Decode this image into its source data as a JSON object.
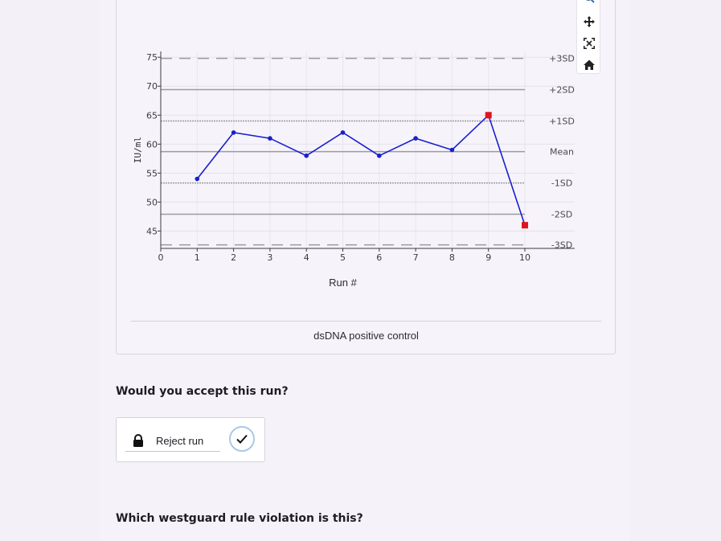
{
  "modebar": {
    "icons": [
      "zoom-icon",
      "pan-icon",
      "autoscale-icon",
      "reset-home-icon"
    ]
  },
  "chart_data": {
    "type": "line",
    "title": "",
    "xlabel": "Run #",
    "ylabel": "IU/ml",
    "xlim": [
      0,
      10
    ],
    "ylim": [
      42,
      76
    ],
    "x_ticks": [
      "0",
      "1",
      "2",
      "3",
      "4",
      "5",
      "6",
      "7",
      "8",
      "9",
      "10"
    ],
    "y_ticks": [
      "45",
      "50",
      "55",
      "60",
      "65",
      "70",
      "75"
    ],
    "series": [
      {
        "x": [
          1,
          2,
          3,
          4,
          5,
          6,
          7,
          8,
          9,
          10
        ],
        "y": [
          54,
          62,
          61,
          58,
          62,
          58,
          61,
          59,
          65,
          46
        ],
        "color": "#1a1fcf",
        "violations": [
          9,
          10
        ],
        "violation_color": "#e0141e"
      }
    ],
    "reference_lines": [
      {
        "label": "+3SD",
        "value": 74.8,
        "style": "dashed"
      },
      {
        "label": "+2SD",
        "value": 69.4,
        "style": "solid"
      },
      {
        "label": "+1SD",
        "value": 64.0,
        "style": "dotted"
      },
      {
        "label": "Mean",
        "value": 58.7,
        "style": "solid"
      },
      {
        "label": "-1SD",
        "value": 53.3,
        "style": "dotted"
      },
      {
        "label": "-2SD",
        "value": 47.9,
        "style": "solid"
      },
      {
        "label": "-3SD",
        "value": 42.6,
        "style": "dashed"
      }
    ],
    "grid": true
  },
  "chart_caption": "dsDNA positive control",
  "question_accept": "Would you accept this run?",
  "reject_option": {
    "label": "Reject run",
    "checked": true
  },
  "question_rule": "Which westguard rule violation is this?"
}
